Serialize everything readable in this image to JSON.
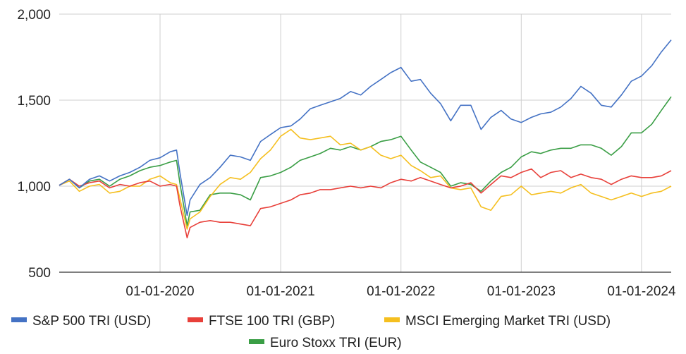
{
  "chart_data": {
    "type": "line",
    "title": "",
    "xlabel": "",
    "ylabel": "",
    "ylim": [
      500,
      2000
    ],
    "yticks": [
      500,
      1000,
      1500,
      2000
    ],
    "ytick_labels": [
      "500",
      "1,000",
      "1,500",
      "2,000"
    ],
    "xlim": [
      "2019-03-01",
      "2024-03-31"
    ],
    "xticks": [
      "2020-01-01",
      "2021-01-01",
      "2022-01-01",
      "2023-01-01",
      "2024-01-01"
    ],
    "xtick_labels": [
      "01-01-2020",
      "01-01-2021",
      "01-01-2022",
      "01-01-2023",
      "01-01-2024"
    ],
    "grid": true,
    "legend_position": "bottom",
    "x": [
      "2019-03-01",
      "2019-04-01",
      "2019-05-01",
      "2019-06-01",
      "2019-07-01",
      "2019-08-01",
      "2019-09-01",
      "2019-10-01",
      "2019-11-01",
      "2019-12-01",
      "2020-01-01",
      "2020-02-01",
      "2020-02-20",
      "2020-03-01",
      "2020-03-23",
      "2020-04-01",
      "2020-05-01",
      "2020-06-01",
      "2020-07-01",
      "2020-08-01",
      "2020-09-01",
      "2020-10-01",
      "2020-11-01",
      "2020-12-01",
      "2021-01-01",
      "2021-02-01",
      "2021-03-01",
      "2021-04-01",
      "2021-05-01",
      "2021-06-01",
      "2021-07-01",
      "2021-08-01",
      "2021-09-01",
      "2021-10-01",
      "2021-11-01",
      "2021-12-01",
      "2022-01-01",
      "2022-02-01",
      "2022-03-01",
      "2022-04-01",
      "2022-05-01",
      "2022-06-01",
      "2022-07-01",
      "2022-08-01",
      "2022-09-01",
      "2022-10-01",
      "2022-11-01",
      "2022-12-01",
      "2023-01-01",
      "2023-02-01",
      "2023-03-01",
      "2023-04-01",
      "2023-05-01",
      "2023-06-01",
      "2023-07-01",
      "2023-08-01",
      "2023-09-01",
      "2023-10-01",
      "2023-11-01",
      "2023-12-01",
      "2024-01-01",
      "2024-02-01",
      "2024-03-01",
      "2024-03-31"
    ],
    "series": [
      {
        "name": "S&P 500 TRI (USD)",
        "color": "#4472c4",
        "values": [
          1005,
          1040,
          990,
          1040,
          1060,
          1030,
          1060,
          1080,
          1110,
          1150,
          1165,
          1200,
          1210,
          1080,
          830,
          920,
          1010,
          1050,
          1110,
          1180,
          1170,
          1150,
          1260,
          1300,
          1340,
          1350,
          1390,
          1450,
          1470,
          1490,
          1510,
          1550,
          1530,
          1580,
          1620,
          1660,
          1690,
          1610,
          1620,
          1540,
          1480,
          1380,
          1470,
          1470,
          1330,
          1400,
          1440,
          1390,
          1370,
          1400,
          1420,
          1430,
          1460,
          1510,
          1580,
          1540,
          1470,
          1460,
          1530,
          1610,
          1640,
          1700,
          1780,
          1850
        ]
      },
      {
        "name": "FTSE 100 TRI (GBP)",
        "color": "#e8403a",
        "values": [
          1005,
          1040,
          1000,
          1020,
          1030,
          990,
          1010,
          1000,
          1020,
          1030,
          1000,
          1010,
          1000,
          890,
          700,
          760,
          790,
          800,
          790,
          790,
          780,
          770,
          870,
          880,
          900,
          920,
          950,
          960,
          980,
          980,
          990,
          1000,
          990,
          1000,
          990,
          1020,
          1040,
          1030,
          1050,
          1030,
          1010,
          990,
          1000,
          1020,
          960,
          1010,
          1060,
          1050,
          1080,
          1100,
          1050,
          1080,
          1090,
          1050,
          1070,
          1050,
          1040,
          1010,
          1040,
          1060,
          1050,
          1050,
          1060,
          1090
        ]
      },
      {
        "name": "MSCI Emerging Market TRI (USD)",
        "color": "#f5bf1f",
        "values": [
          1005,
          1030,
          970,
          1000,
          1010,
          960,
          970,
          1000,
          1000,
          1040,
          1060,
          1020,
          1010,
          930,
          750,
          810,
          850,
          940,
          1010,
          1050,
          1040,
          1080,
          1160,
          1210,
          1290,
          1330,
          1280,
          1270,
          1280,
          1290,
          1240,
          1250,
          1210,
          1230,
          1180,
          1160,
          1180,
          1120,
          1090,
          1050,
          1060,
          990,
          980,
          990,
          880,
          860,
          940,
          950,
          1000,
          950,
          960,
          970,
          960,
          990,
          1010,
          960,
          940,
          920,
          940,
          960,
          940,
          960,
          970,
          1000
        ]
      },
      {
        "name": "Euro Stoxx TRI (EUR)",
        "color": "#3a9e45",
        "values": [
          1005,
          1040,
          990,
          1030,
          1040,
          1000,
          1040,
          1060,
          1090,
          1110,
          1120,
          1140,
          1150,
          1020,
          770,
          850,
          860,
          950,
          960,
          960,
          950,
          920,
          1050,
          1060,
          1080,
          1110,
          1150,
          1170,
          1190,
          1220,
          1210,
          1230,
          1210,
          1230,
          1260,
          1270,
          1290,
          1210,
          1140,
          1110,
          1080,
          1000,
          1020,
          1010,
          970,
          1030,
          1080,
          1110,
          1170,
          1200,
          1190,
          1210,
          1220,
          1220,
          1240,
          1240,
          1220,
          1180,
          1230,
          1310,
          1310,
          1360,
          1440,
          1520
        ]
      }
    ]
  }
}
